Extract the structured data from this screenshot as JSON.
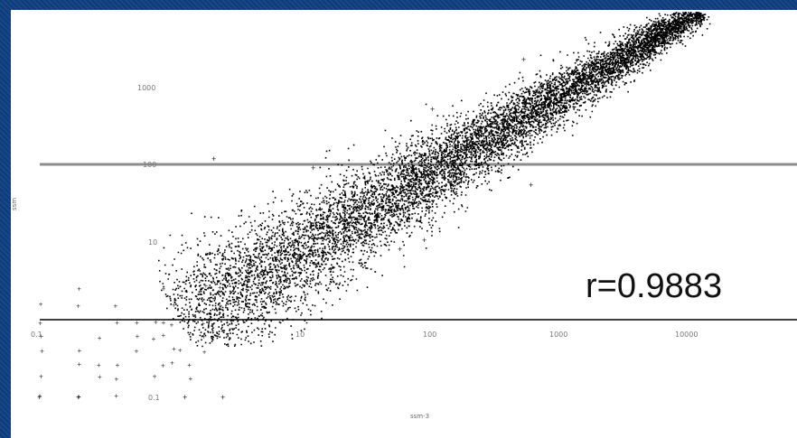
{
  "chart_data": {
    "type": "scatter",
    "title": "",
    "xlabel": "ssm-3",
    "ylabel": "ssm",
    "annotation": "r=0.9883",
    "x_ticks": [
      "0.1",
      "10",
      "100",
      "1000",
      "10000"
    ],
    "y_ticks": [
      "1000",
      "100",
      "10"
    ],
    "below_axis_label": "0.1",
    "xlim": [
      0.1,
      20000
    ],
    "ylim": [
      0.01,
      20000
    ],
    "log_scale": true,
    "correlation": 0.9883,
    "reference_lines": [
      {
        "axis": "y",
        "value": 100,
        "style": "gray"
      },
      {
        "axis": "y",
        "value": 1,
        "style": "black"
      }
    ],
    "n_points_approx": 9000
  }
}
